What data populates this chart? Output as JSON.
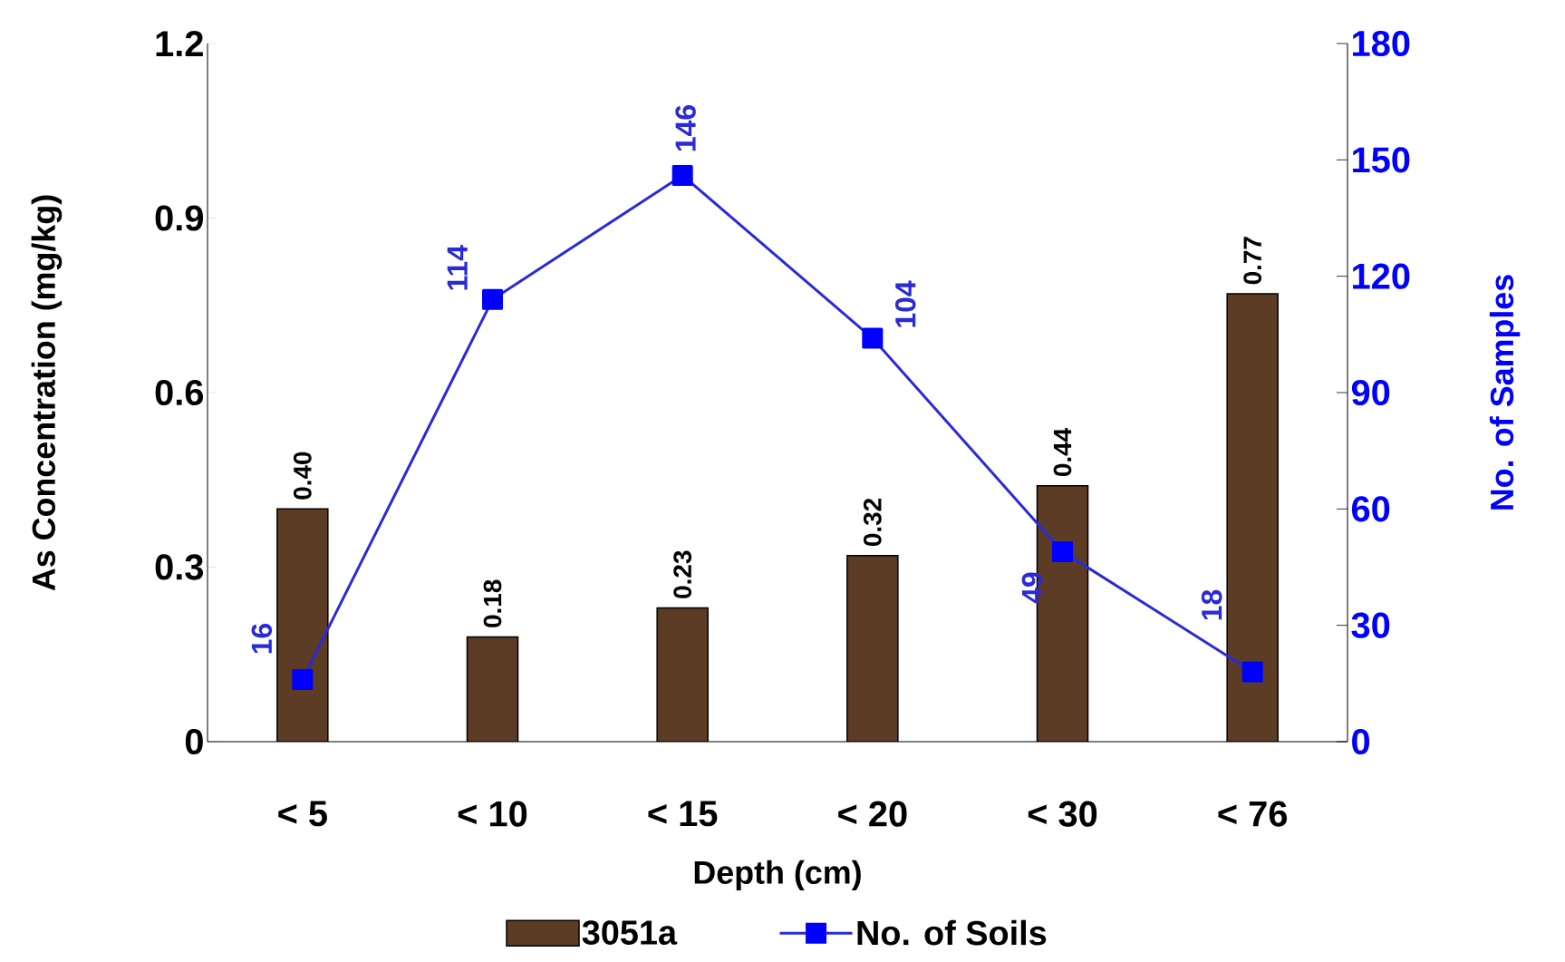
{
  "chart_data": {
    "type": "bar",
    "xlabel": "Depth (cm)",
    "ylabel": "As Concentration (mg/kg)",
    "y2label": "No. of Samples",
    "categories": [
      "< 5",
      "< 10",
      "< 15",
      "< 20",
      "< 30",
      "< 76"
    ],
    "series": [
      {
        "name": "3051a",
        "color": "#5c3c24",
        "values": [
          0.4,
          0.18,
          0.23,
          0.32,
          0.44,
          0.77
        ],
        "value_labels": [
          "0.40",
          "0.18",
          "0.23",
          "0.32",
          "0.44",
          "0.77"
        ]
      },
      {
        "name": "No. of Soils",
        "type": "line",
        "axis": "y2",
        "color": "#2a2ad8",
        "values": [
          16,
          114,
          146,
          104,
          49,
          18
        ],
        "value_labels": [
          "16",
          "114",
          "146",
          "104",
          "49",
          "18"
        ]
      }
    ],
    "ylim": [
      0,
      1.2
    ],
    "yticks": [
      0,
      0.3,
      0.6,
      0.9,
      1.2
    ],
    "y2lim": [
      0,
      180
    ],
    "y2ticks": [
      0,
      30,
      60,
      90,
      120,
      150,
      180
    ],
    "marker": "square",
    "legend": "bottom",
    "grid": false
  }
}
